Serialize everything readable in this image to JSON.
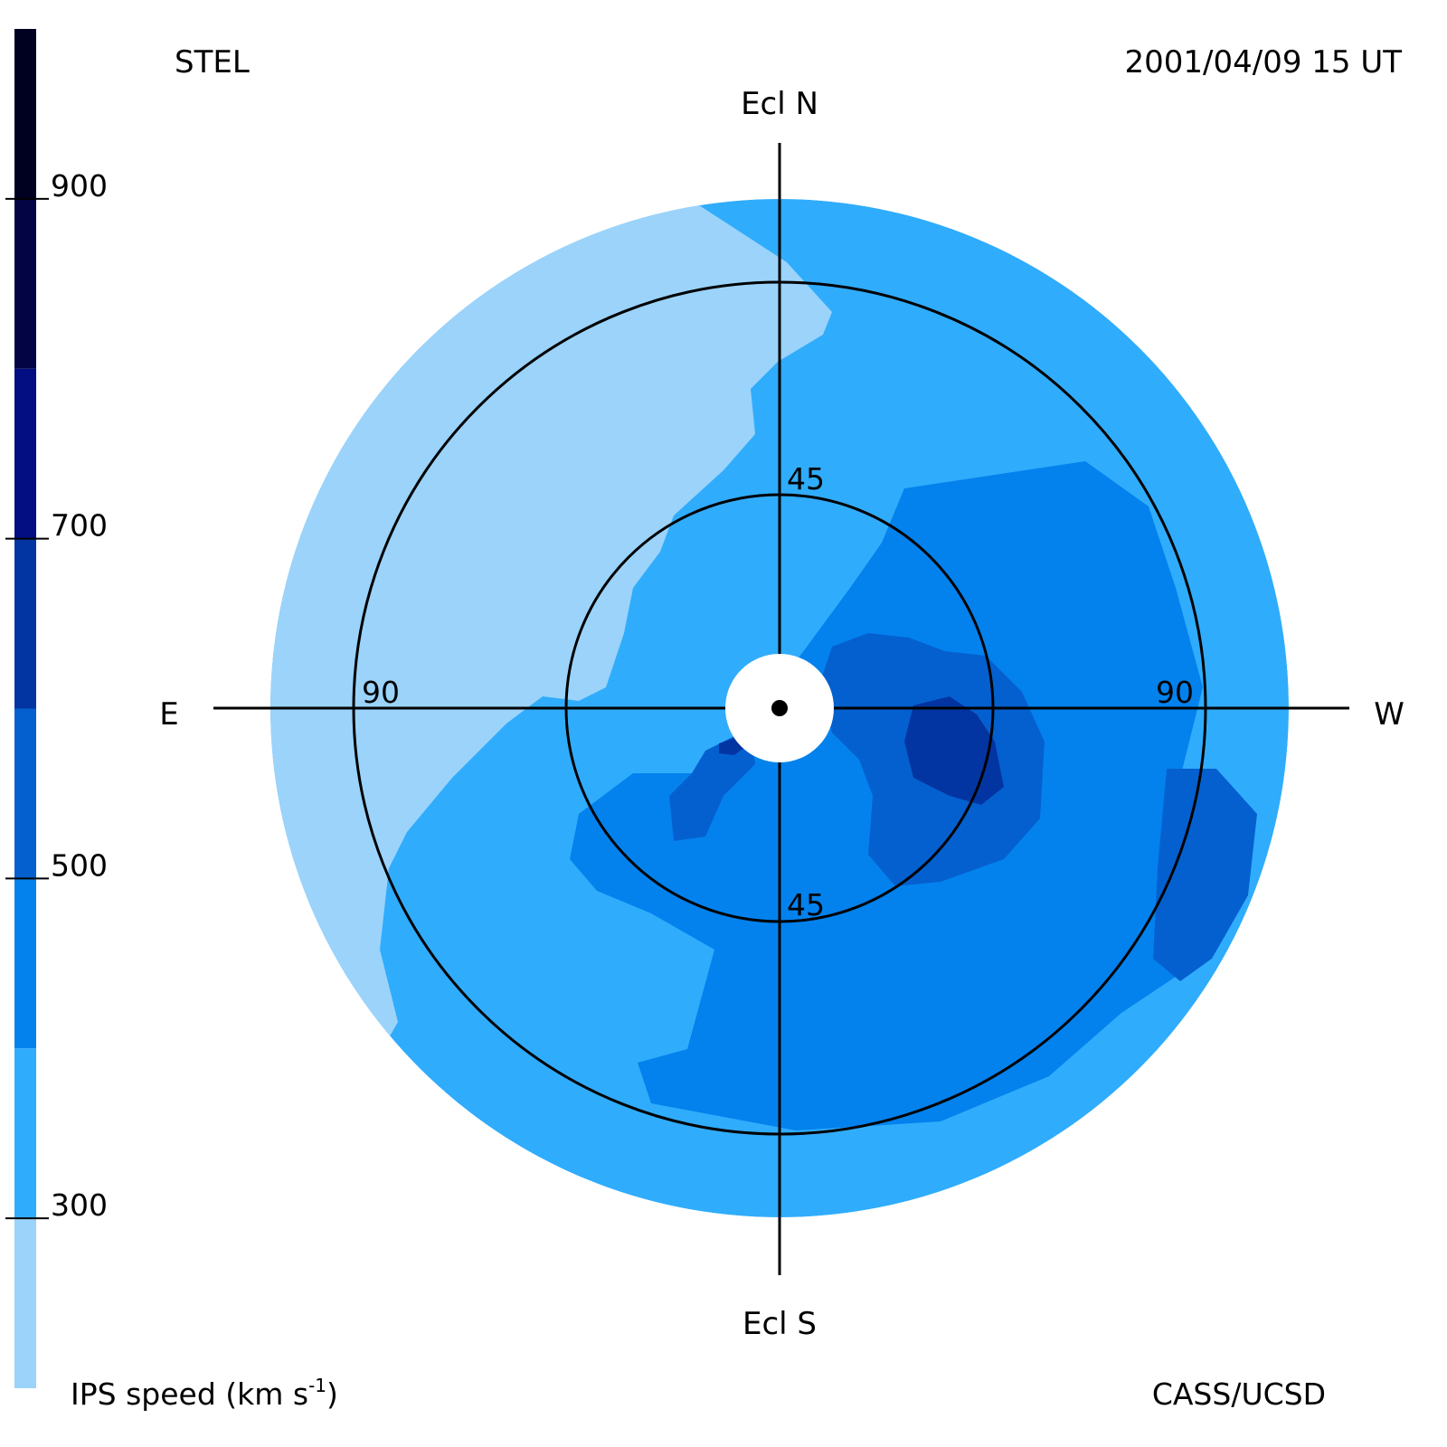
{
  "header": {
    "left_label": "STEL",
    "right_label": "2001/04/09 15 UT"
  },
  "footer": {
    "left_label": "IPS speed (km s",
    "left_label_sup": "-1",
    "left_label_end": ")",
    "right_label": "CASS/UCSD"
  },
  "chart_data": {
    "type": "heatmap",
    "projection": "polar sky map centered on the Sun",
    "directions": {
      "north": "Ecl N",
      "south": "Ecl S",
      "east": "E",
      "west": "W"
    },
    "ring_labels": {
      "inner_north": "45",
      "inner_south": "45",
      "outer_east": "90",
      "outer_west": "90"
    },
    "rings_deg": [
      45,
      90
    ],
    "max_elongation_deg": 110,
    "colorbar": {
      "title": "IPS speed (km s-1)",
      "range": [
        200,
        1000
      ],
      "ticks": [
        {
          "value": 300,
          "label": "300"
        },
        {
          "value": 500,
          "label": "500"
        },
        {
          "value": 700,
          "label": "700"
        },
        {
          "value": 900,
          "label": "900"
        }
      ],
      "bins": [
        {
          "from": 200,
          "to": 300,
          "color": "#9bd3fa"
        },
        {
          "from": 300,
          "to": 400,
          "color": "#30acfc"
        },
        {
          "from": 400,
          "to": 500,
          "color": "#0382ee"
        },
        {
          "from": 500,
          "to": 600,
          "color": "#0560cf"
        },
        {
          "from": 600,
          "to": 700,
          "color": "#0335a2"
        },
        {
          "from": 700,
          "to": 800,
          "color": "#020e82"
        },
        {
          "from": 800,
          "to": 900,
          "color": "#020444"
        },
        {
          "from": 900,
          "to": 1000,
          "color": "#000020"
        }
      ]
    },
    "regions": [
      {
        "name": "background",
        "speed": 350,
        "color": "#30acfc"
      },
      {
        "name": "east-low-speed",
        "speed": 250,
        "color": "#9bd3fa"
      },
      {
        "name": "central-moderate",
        "speed": 450,
        "color": "#0382ee"
      },
      {
        "name": "south-moderate",
        "speed": 450,
        "color": "#0382ee"
      },
      {
        "name": "west-fast",
        "speed": 550,
        "color": "#0560cf"
      },
      {
        "name": "far-west-fast",
        "speed": 550,
        "color": "#0560cf"
      },
      {
        "name": "southeast-fast",
        "speed": 550,
        "color": "#0560cf"
      },
      {
        "name": "west-core",
        "speed": 650,
        "color": "#0335a2"
      },
      {
        "name": "east-core",
        "speed": 650,
        "color": "#0335a2"
      }
    ]
  }
}
